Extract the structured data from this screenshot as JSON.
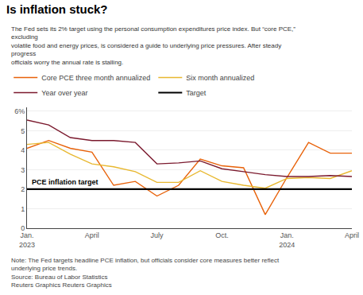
{
  "chart_data": {
    "type": "line",
    "title": "Is inflation stuck?",
    "subtitle": "The Fed sets its 2% target using the personal consumption expenditures price index. But “core PCE,” excluding\nvolatile food and energy prices, is considered a guide to underlying price pressures. After steady progress\nofficials worry the annual rate is stalling.",
    "notes": [
      "Note: The Fed targets headline PCE inflation, but officials consider core measures better reflect underlying price trends.",
      "Source: Bureau of Labor Statistics",
      "Reuters Graphics Reuters Graphics"
    ],
    "categories": [
      "Jan.\n2023",
      null,
      null,
      "April",
      null,
      null,
      "July",
      null,
      null,
      "Oct.",
      null,
      null,
      "Jan.\n2024",
      null,
      null,
      "April"
    ],
    "series": [
      {
        "name": "Core PCE three month annualized",
        "color": "#E8620A",
        "values": [
          4.1,
          4.5,
          4.1,
          3.9,
          2.2,
          2.4,
          1.65,
          2.2,
          3.55,
          3.2,
          3.1,
          0.7,
          2.6,
          4.4,
          3.85,
          3.85
        ]
      },
      {
        "name": "Six month annualized",
        "color": "#E8B830",
        "values": [
          4.3,
          4.4,
          3.8,
          3.3,
          3.15,
          2.9,
          2.35,
          2.35,
          2.95,
          2.4,
          2.2,
          2.05,
          2.55,
          2.6,
          2.55,
          2.95
        ]
      },
      {
        "name": "Year over year",
        "color": "#7B1A2E",
        "values": [
          5.55,
          5.3,
          4.65,
          4.5,
          4.5,
          4.4,
          3.3,
          3.35,
          3.45,
          3.05,
          2.9,
          2.75,
          2.65,
          2.65,
          2.7,
          2.65
        ]
      },
      {
        "name": "Target",
        "color": "#000000",
        "values": [
          2.0,
          2.0,
          2.0,
          2.0,
          2.0,
          2.0,
          2.0,
          2.0,
          2.0,
          2.0,
          2.0,
          2.0,
          2.0,
          2.0,
          2.0,
          2.0
        ]
      }
    ],
    "annotations": [
      {
        "text": "PCE inflation target",
        "series": "Target"
      }
    ],
    "ylim": [
      0,
      6.2
    ],
    "yticks": [
      0,
      1,
      2,
      3,
      4,
      5,
      {
        "value": 6,
        "label": "6%"
      }
    ],
    "grid": true,
    "legend": "top left"
  }
}
